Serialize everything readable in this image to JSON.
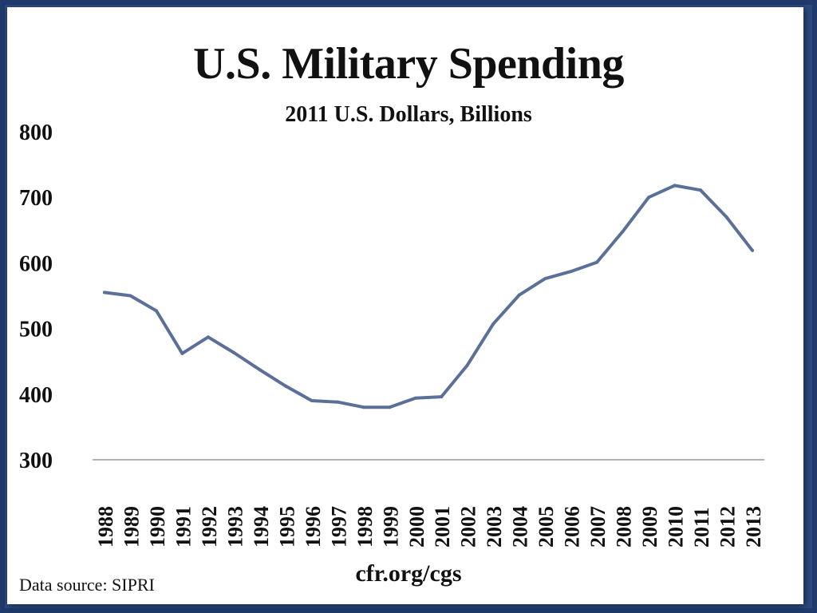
{
  "chart_data": {
    "type": "line",
    "title": "U.S. Military Spending",
    "subtitle": "2011 U.S. Dollars, Billions",
    "xlabel": "",
    "ylabel": "",
    "ylim": [
      300,
      800
    ],
    "yticks": [
      "800",
      "700",
      "600",
      "500",
      "400",
      "300"
    ],
    "categories": [
      "1988",
      "1989",
      "1990",
      "1991",
      "1992",
      "1993",
      "1994",
      "1995",
      "1996",
      "1997",
      "1998",
      "1999",
      "2000",
      "2001",
      "2002",
      "2003",
      "2004",
      "2005",
      "2006",
      "2007",
      "2008",
      "2009",
      "2010",
      "2011",
      "2012",
      "2013"
    ],
    "series": [
      {
        "values": [
          555,
          550,
          527,
          462,
          487,
          463,
          437,
          412,
          390,
          388,
          380,
          380,
          394,
          396,
          444,
          507,
          551,
          576,
          587,
          601,
          648,
          700,
          718,
          711,
          670,
          619
        ]
      }
    ],
    "grid": false,
    "line_color": "#5a7099"
  },
  "footer": {
    "source": "Data source: SIPRI",
    "credit": "cfr.org/cgs"
  },
  "colors": {
    "background_frame": "#2b4a82",
    "card": "#ffffff",
    "axis": "#999999"
  }
}
